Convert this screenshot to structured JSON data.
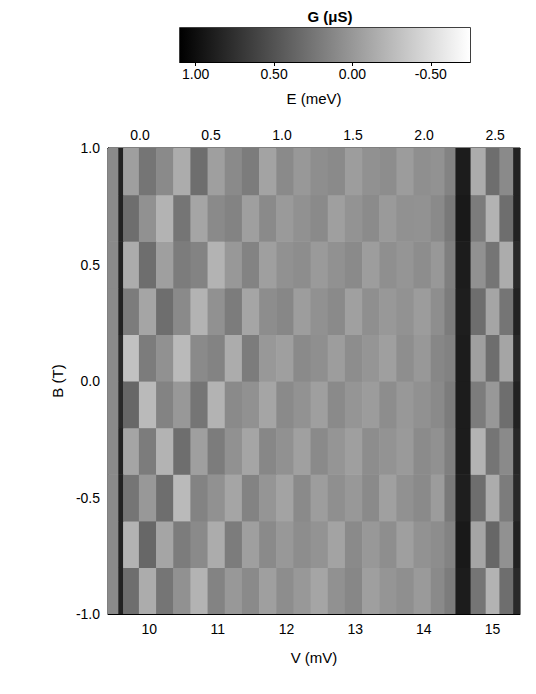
{
  "chart_data": {
    "type": "heatmap",
    "colorbar_label": "G (μS)",
    "xlabel": "V (mV)",
    "ylabel": "B (T)",
    "x2label": "E (meV)",
    "x_edges": [
      9.4,
      9.55,
      9.62,
      9.85,
      10.1,
      10.35,
      10.6,
      10.85,
      11.1,
      11.35,
      11.6,
      11.85,
      12.1,
      12.35,
      12.6,
      12.85,
      13.1,
      13.35,
      13.6,
      13.85,
      14.1,
      14.3,
      14.46,
      14.68,
      14.9,
      15.1,
      15.3,
      15.4
    ],
    "y_edges": [
      -1.0,
      -0.8,
      -0.6,
      -0.4,
      -0.2,
      0.0,
      0.2,
      0.4,
      0.6,
      0.8,
      1.0
    ],
    "values": [
      [
        0.1,
        0.85,
        0.3,
        -0.15,
        0.25,
        0.05,
        -0.2,
        0.15,
        0.0,
        0.1,
        -0.05,
        0.08,
        0.0,
        -0.1,
        0.05,
        0.12,
        -0.05,
        0.02,
        0.06,
        -0.02,
        0.1,
        0.2,
        0.9,
        0.25,
        -0.2,
        0.3,
        0.8
      ],
      [
        0.1,
        0.85,
        -0.2,
        0.35,
        -0.1,
        0.2,
        0.1,
        -0.15,
        0.2,
        -0.05,
        0.1,
        0.0,
        0.08,
        0.03,
        -0.08,
        0.1,
        0.0,
        0.07,
        -0.05,
        0.04,
        0.08,
        0.15,
        0.92,
        -0.1,
        0.35,
        0.05,
        0.85
      ],
      [
        0.1,
        0.85,
        0.25,
        0.0,
        0.3,
        -0.25,
        0.15,
        0.05,
        -0.1,
        0.15,
        0.02,
        -0.08,
        0.1,
        -0.04,
        0.06,
        0.0,
        0.1,
        -0.06,
        0.05,
        0.1,
        -0.03,
        0.22,
        0.88,
        0.3,
        -0.15,
        0.2,
        0.8
      ],
      [
        0.1,
        0.85,
        -0.1,
        0.2,
        -0.2,
        0.3,
        -0.05,
        0.2,
        0.05,
        -0.1,
        0.12,
        0.05,
        -0.06,
        0.1,
        0.02,
        -0.05,
        0.08,
        0.03,
        -0.02,
        0.09,
        0.05,
        0.18,
        0.9,
        -0.2,
        0.25,
        0.1,
        0.82
      ],
      [
        0.1,
        0.8,
        0.35,
        -0.25,
        0.15,
        0.0,
        0.25,
        -0.2,
        0.1,
        0.05,
        -0.1,
        0.1,
        0.04,
        -0.05,
        0.1,
        0.02,
        -0.03,
        0.08,
        0.0,
        0.05,
        0.1,
        0.2,
        0.9,
        0.2,
        0.0,
        0.3,
        0.85
      ],
      [
        0.1,
        0.8,
        -0.3,
        0.2,
        0.05,
        -0.25,
        0.1,
        0.15,
        -0.15,
        0.2,
        0.0,
        -0.05,
        0.1,
        0.06,
        -0.04,
        0.08,
        0.02,
        -0.05,
        0.07,
        0.0,
        0.12,
        0.16,
        0.9,
        -0.05,
        0.3,
        -0.1,
        0.8
      ],
      [
        0.1,
        0.85,
        0.2,
        -0.1,
        0.3,
        0.1,
        -0.2,
        0.05,
        0.2,
        -0.1,
        0.08,
        0.12,
        -0.04,
        0.05,
        0.1,
        -0.06,
        0.06,
        0.0,
        0.04,
        -0.03,
        0.07,
        0.2,
        0.88,
        0.3,
        -0.1,
        0.25,
        0.85
      ],
      [
        0.1,
        0.85,
        -0.15,
        0.3,
        -0.05,
        0.2,
        0.15,
        -0.2,
        0.0,
        0.15,
        -0.05,
        0.05,
        0.08,
        -0.02,
        0.05,
        0.1,
        -0.04,
        0.06,
        0.02,
        0.08,
        0.0,
        0.18,
        0.9,
        0.05,
        0.25,
        -0.15,
        0.8
      ],
      [
        0.1,
        0.85,
        0.3,
        0.05,
        -0.2,
        0.25,
        -0.1,
        0.1,
        0.15,
        -0.05,
        0.1,
        -0.02,
        0.05,
        0.1,
        -0.05,
        0.03,
        0.09,
        -0.02,
        0.05,
        0.04,
        0.1,
        0.22,
        0.92,
        0.2,
        -0.2,
        0.3,
        0.85
      ],
      [
        0.1,
        0.85,
        -0.05,
        0.25,
        0.1,
        -0.15,
        0.3,
        -0.05,
        0.1,
        0.2,
        -0.08,
        0.1,
        0.0,
        0.07,
        0.1,
        -0.04,
        0.05,
        0.08,
        -0.03,
        0.06,
        0.04,
        0.15,
        0.9,
        -0.15,
        0.3,
        0.1,
        0.85
      ]
    ],
    "xlim": [
      9.4,
      15.4
    ],
    "xticks": [
      10,
      11,
      12,
      13,
      14,
      15
    ],
    "ylim": [
      -1,
      1
    ],
    "yticks": [
      {
        "value": -1,
        "label": "-1.0"
      },
      {
        "value": -0.5,
        "label": "-0.5"
      },
      {
        "value": 0,
        "label": "0.0"
      },
      {
        "value": 0.5,
        "label": "0.5"
      },
      {
        "value": 1,
        "label": "1.0"
      }
    ],
    "x2lim": [
      -0.225,
      2.675
    ],
    "x2ticks": [
      {
        "value": 0,
        "label": "0.0"
      },
      0.5,
      {
        "value": 1,
        "label": "1.0"
      },
      1.5,
      {
        "value": 2,
        "label": "2.0"
      },
      2.5
    ],
    "colorbar_lim": [
      1.1,
      -0.75
    ],
    "colorbar_ticks": [
      {
        "value": 1,
        "label": "1.00"
      },
      {
        "value": 0.5,
        "label": "0.50"
      },
      {
        "value": 0,
        "label": "0.00"
      },
      {
        "value": -0.5,
        "label": "-0.50"
      }
    ]
  }
}
